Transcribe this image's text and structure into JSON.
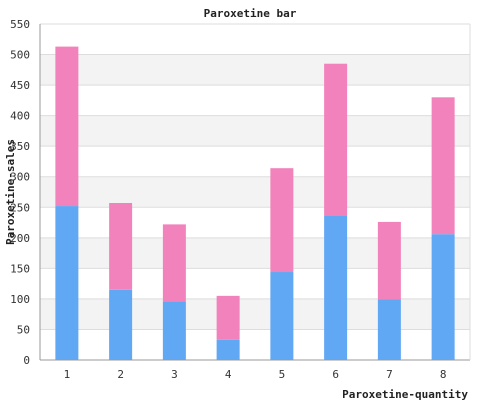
{
  "chart_data": {
    "type": "bar",
    "stacked": true,
    "title": "Paroxetine bar",
    "xlabel": "Paroxetine-quantity",
    "ylabel": "Paroxetine-sales",
    "categories": [
      "1",
      "2",
      "3",
      "4",
      "5",
      "6",
      "7",
      "8"
    ],
    "series": [
      {
        "color": "#60a8f4",
        "values": [
          252,
          115,
          96,
          33,
          144,
          237,
          99,
          206
        ]
      },
      {
        "color": "#f282bc",
        "values": [
          261,
          142,
          126,
          72,
          170,
          248,
          127,
          224
        ]
      }
    ],
    "ylim": [
      0,
      550
    ],
    "yticks": [
      0,
      50,
      100,
      150,
      200,
      250,
      300,
      350,
      400,
      450,
      500,
      550
    ],
    "grid": true,
    "band_colors": [
      "#ffffff",
      "#f3f3f3"
    ],
    "legend": "none"
  }
}
